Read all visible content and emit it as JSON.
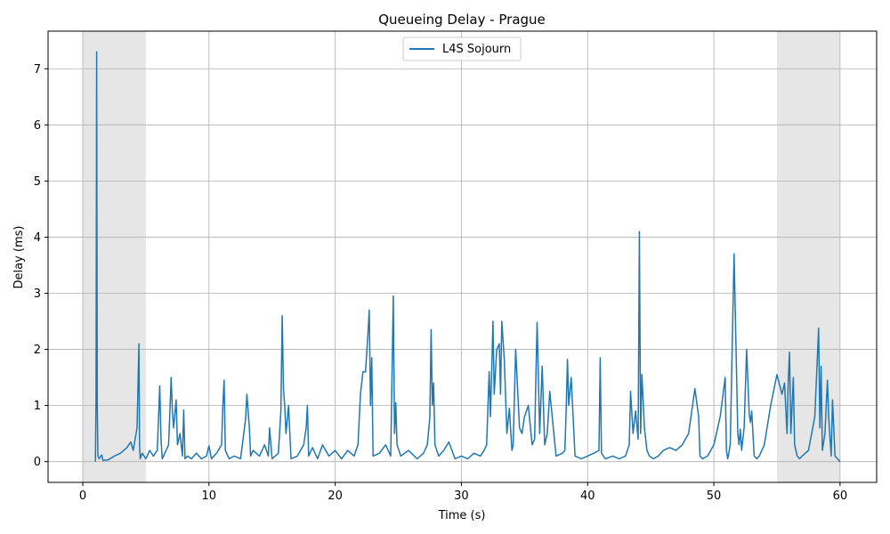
{
  "chart_data": {
    "type": "line",
    "title": "Queueing Delay - Prague",
    "xlabel": "Time (s)",
    "ylabel": "Delay (ms)",
    "xlim": [
      -2.75,
      62.9
    ],
    "ylim": [
      -0.37,
      7.67
    ],
    "xticks": [
      0,
      10,
      20,
      30,
      40,
      50,
      60
    ],
    "yticks": [
      0,
      1,
      2,
      3,
      4,
      5,
      6,
      7
    ],
    "grid": true,
    "legend_position": "top-center",
    "shaded_regions": [
      [
        0,
        5
      ],
      [
        55,
        60
      ]
    ],
    "series": [
      {
        "name": "L4S Sojourn",
        "color": "#1f77b4",
        "x": [
          1.0,
          1.05,
          1.1,
          1.15,
          1.2,
          1.3,
          1.5,
          1.6,
          2.0,
          2.5,
          3.0,
          3.5,
          3.8,
          4.0,
          4.3,
          4.45,
          4.5,
          4.55,
          4.7,
          5.0,
          5.3,
          5.6,
          5.9,
          6.1,
          6.2,
          6.3,
          6.5,
          6.8,
          6.9,
          7.0,
          7.1,
          7.2,
          7.4,
          7.5,
          7.7,
          7.9,
          8.0,
          8.1,
          8.3,
          8.6,
          9.0,
          9.4,
          9.8,
          10.0,
          10.2,
          10.6,
          11.0,
          11.1,
          11.2,
          11.3,
          11.6,
          12.0,
          12.5,
          12.9,
          13.0,
          13.2,
          13.3,
          13.5,
          14.0,
          14.4,
          14.7,
          14.8,
          15.0,
          15.5,
          15.7,
          15.8,
          15.9,
          16.0,
          16.1,
          16.3,
          16.5,
          17.0,
          17.5,
          17.7,
          17.8,
          17.9,
          18.2,
          18.6,
          19.0,
          19.5,
          20.0,
          20.5,
          21.0,
          21.5,
          21.8,
          22.0,
          22.2,
          22.4,
          22.6,
          22.7,
          22.8,
          22.9,
          23.0,
          23.5,
          24.0,
          24.4,
          24.6,
          24.7,
          24.8,
          24.9,
          25.2,
          25.8,
          26.5,
          27.0,
          27.3,
          27.5,
          27.6,
          27.7,
          27.8,
          27.9,
          28.2,
          28.6,
          29.0,
          29.5,
          30.0,
          30.5,
          31.0,
          31.5,
          31.8,
          32.0,
          32.2,
          32.3,
          32.5,
          32.6,
          32.8,
          33.0,
          33.1,
          33.2,
          33.4,
          33.6,
          33.8,
          34.0,
          34.1,
          34.3,
          34.6,
          34.8,
          35.0,
          35.3,
          35.6,
          35.8,
          35.9,
          36.0,
          36.2,
          36.4,
          36.6,
          36.8,
          37.0,
          37.5,
          38.0,
          38.2,
          38.3,
          38.4,
          38.5,
          38.7,
          39.0,
          39.5,
          40.0,
          40.5,
          40.9,
          41.0,
          41.1,
          41.4,
          42.0,
          42.5,
          43.0,
          43.3,
          43.4,
          43.6,
          43.8,
          44.0,
          44.1,
          44.2,
          44.3,
          44.5,
          44.7,
          44.9,
          45.2,
          45.6,
          46.0,
          46.5,
          47.0,
          47.5,
          48.0,
          48.5,
          48.8,
          48.9,
          49.1,
          49.5,
          50.0,
          50.5,
          50.9,
          51.0,
          51.1,
          51.3,
          51.6,
          51.9,
          52.0,
          52.1,
          52.2,
          52.4,
          52.6,
          52.8,
          52.9,
          53.0,
          53.2,
          53.4,
          53.6,
          54.0,
          54.5,
          55.0,
          55.4,
          55.6,
          55.8,
          55.9,
          56.0,
          56.1,
          56.3,
          56.4,
          56.6,
          56.8,
          57.0,
          57.5,
          58.0,
          58.3,
          58.4,
          58.5,
          58.6,
          58.8,
          59.0,
          59.1,
          59.3,
          59.4,
          59.5,
          59.6,
          59.8,
          60.0
        ],
        "y": [
          0.0,
          1.1,
          7.3,
          1.0,
          0.1,
          0.05,
          0.12,
          0.02,
          0.03,
          0.1,
          0.15,
          0.25,
          0.35,
          0.2,
          0.6,
          2.1,
          0.3,
          0.05,
          0.15,
          0.05,
          0.2,
          0.1,
          0.2,
          1.35,
          0.4,
          0.05,
          0.15,
          0.3,
          0.85,
          1.5,
          0.9,
          0.6,
          1.1,
          0.3,
          0.5,
          0.1,
          0.92,
          0.05,
          0.1,
          0.05,
          0.15,
          0.05,
          0.1,
          0.28,
          0.05,
          0.15,
          0.3,
          1.0,
          1.45,
          0.2,
          0.05,
          0.1,
          0.05,
          0.75,
          1.2,
          0.6,
          0.1,
          0.2,
          0.1,
          0.3,
          0.1,
          0.6,
          0.05,
          0.15,
          0.9,
          2.6,
          1.3,
          1.0,
          0.5,
          1.0,
          0.05,
          0.1,
          0.3,
          0.6,
          1.0,
          0.1,
          0.25,
          0.05,
          0.3,
          0.1,
          0.2,
          0.05,
          0.2,
          0.1,
          0.3,
          1.2,
          1.6,
          1.6,
          2.3,
          2.7,
          1.0,
          1.85,
          0.1,
          0.15,
          0.3,
          0.1,
          2.95,
          0.5,
          1.05,
          0.3,
          0.1,
          0.2,
          0.05,
          0.15,
          0.3,
          0.8,
          2.35,
          1.0,
          1.4,
          0.3,
          0.1,
          0.2,
          0.35,
          0.05,
          0.1,
          0.05,
          0.15,
          0.1,
          0.2,
          0.3,
          1.6,
          0.8,
          2.5,
          1.2,
          2.0,
          2.1,
          1.2,
          2.5,
          1.8,
          0.5,
          0.95,
          0.2,
          0.3,
          2.0,
          0.6,
          0.5,
          0.8,
          1.0,
          0.3,
          0.4,
          1.5,
          2.48,
          0.5,
          1.7,
          0.3,
          0.5,
          1.25,
          0.1,
          0.15,
          0.2,
          0.9,
          1.82,
          1.0,
          1.5,
          0.1,
          0.05,
          0.1,
          0.15,
          0.2,
          1.85,
          0.15,
          0.05,
          0.1,
          0.05,
          0.1,
          0.3,
          1.25,
          0.5,
          0.9,
          0.4,
          4.1,
          0.5,
          1.55,
          0.6,
          0.2,
          0.1,
          0.05,
          0.1,
          0.2,
          0.25,
          0.2,
          0.3,
          0.5,
          1.3,
          0.8,
          0.1,
          0.05,
          0.1,
          0.3,
          0.8,
          1.5,
          0.2,
          0.05,
          0.3,
          3.7,
          0.5,
          0.3,
          0.58,
          0.2,
          0.6,
          2.0,
          0.85,
          0.7,
          0.9,
          0.1,
          0.05,
          0.1,
          0.3,
          1.0,
          1.55,
          1.2,
          1.4,
          0.5,
          1.45,
          1.95,
          0.5,
          1.5,
          0.3,
          0.1,
          0.05,
          0.1,
          0.2,
          0.8,
          2.38,
          0.6,
          1.7,
          0.2,
          0.5,
          1.45,
          0.8,
          0.1,
          1.1,
          0.6,
          0.1,
          0.05,
          0.0
        ]
      }
    ]
  }
}
